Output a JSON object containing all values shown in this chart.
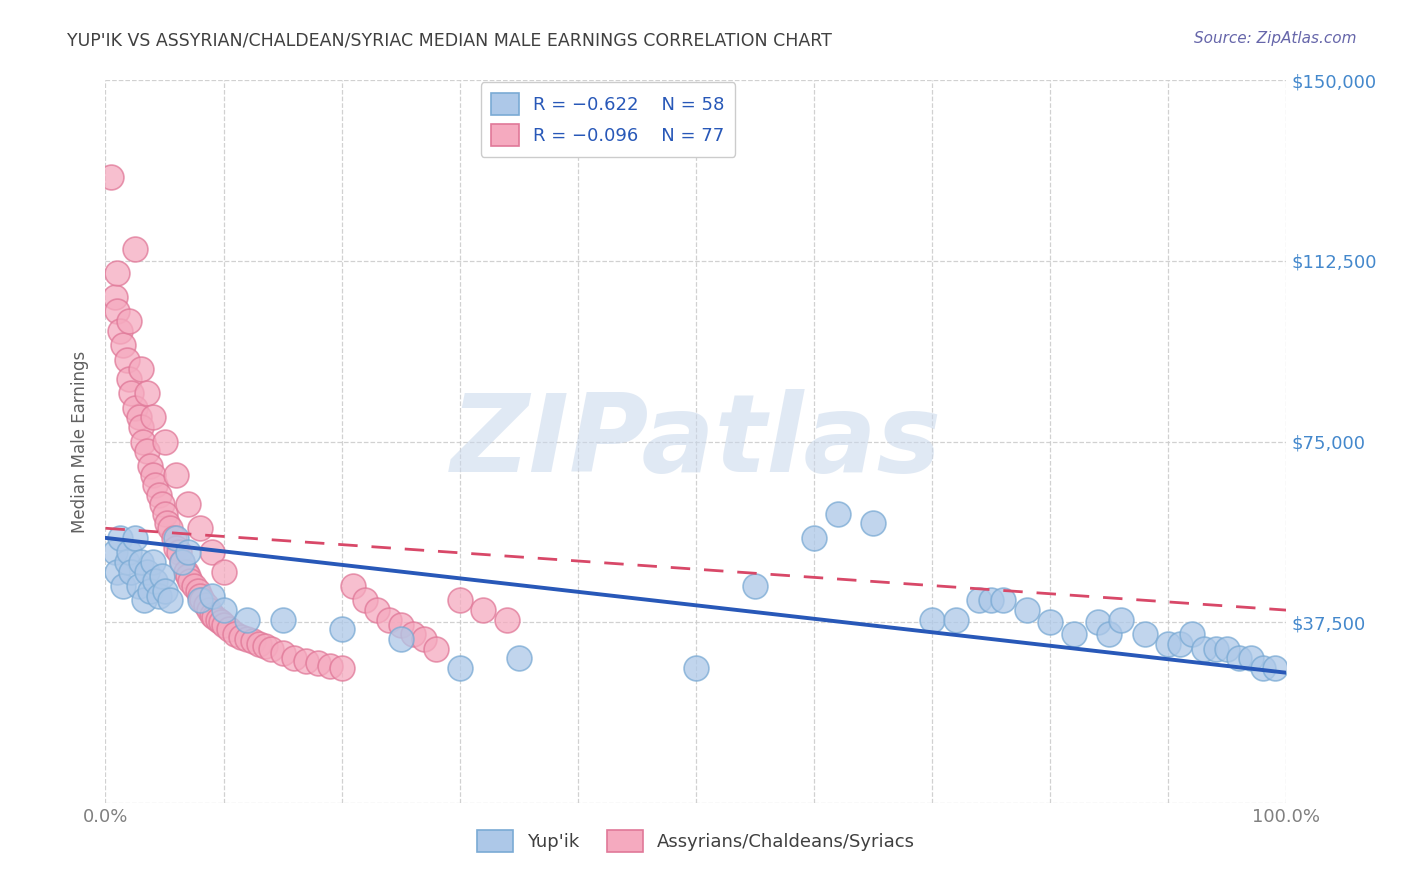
{
  "title": "YUP'IK VS ASSYRIAN/CHALDEAN/SYRIAC MEDIAN MALE EARNINGS CORRELATION CHART",
  "source": "Source: ZipAtlas.com",
  "ylabel": "Median Male Earnings",
  "xlim": [
    0,
    1.0
  ],
  "ylim": [
    0,
    150000
  ],
  "yticks": [
    0,
    37500,
    75000,
    112500,
    150000
  ],
  "ytick_labels_right": [
    "",
    "$37,500",
    "$75,000",
    "$112,500",
    "$150,000"
  ],
  "xtick_positions": [
    0.0,
    0.1,
    0.2,
    0.3,
    0.4,
    0.5,
    0.6,
    0.7,
    0.8,
    0.9,
    1.0
  ],
  "xtick_labels": [
    "0.0%",
    "",
    "",
    "",
    "",
    "",
    "",
    "",
    "",
    "",
    "100.0%"
  ],
  "background_color": "#ffffff",
  "grid_color": "#cccccc",
  "watermark": "ZIPatlas",
  "series1_color": "#adc8e8",
  "series1_edge": "#7aaad4",
  "series2_color": "#f5aabf",
  "series2_edge": "#e07898",
  "line1_color": "#2858b8",
  "line2_color": "#d84868",
  "title_color": "#404040",
  "source_color": "#6666aa",
  "axis_label_color": "#606060",
  "right_tick_color": "#4488cc",
  "legend_text_color": "#2858b8",
  "bottom_legend_color": "#404040",
  "yupik_x": [
    0.008,
    0.01,
    0.012,
    0.015,
    0.018,
    0.02,
    0.022,
    0.025,
    0.028,
    0.03,
    0.033,
    0.035,
    0.038,
    0.04,
    0.042,
    0.045,
    0.048,
    0.05,
    0.055,
    0.06,
    0.065,
    0.07,
    0.08,
    0.09,
    0.1,
    0.12,
    0.15,
    0.2,
    0.25,
    0.3,
    0.35,
    0.5,
    0.55,
    0.6,
    0.62,
    0.65,
    0.7,
    0.72,
    0.74,
    0.75,
    0.76,
    0.78,
    0.8,
    0.82,
    0.84,
    0.85,
    0.86,
    0.88,
    0.9,
    0.91,
    0.92,
    0.93,
    0.94,
    0.95,
    0.96,
    0.97,
    0.98,
    0.99
  ],
  "yupik_y": [
    52000,
    48000,
    55000,
    45000,
    50000,
    52000,
    48000,
    55000,
    45000,
    50000,
    42000,
    48000,
    44000,
    50000,
    46000,
    43000,
    47000,
    44000,
    42000,
    55000,
    50000,
    52000,
    42000,
    43000,
    40000,
    38000,
    38000,
    36000,
    34000,
    28000,
    30000,
    28000,
    45000,
    55000,
    60000,
    58000,
    38000,
    38000,
    42000,
    42000,
    42000,
    40000,
    37500,
    35000,
    37500,
    35000,
    38000,
    35000,
    33000,
    33000,
    35000,
    32000,
    32000,
    32000,
    30000,
    30000,
    28000,
    28000
  ],
  "assyrian_x": [
    0.005,
    0.008,
    0.01,
    0.012,
    0.015,
    0.018,
    0.02,
    0.022,
    0.025,
    0.028,
    0.03,
    0.032,
    0.035,
    0.038,
    0.04,
    0.042,
    0.045,
    0.048,
    0.05,
    0.052,
    0.055,
    0.058,
    0.06,
    0.062,
    0.065,
    0.068,
    0.07,
    0.072,
    0.075,
    0.078,
    0.08,
    0.082,
    0.085,
    0.088,
    0.09,
    0.092,
    0.095,
    0.098,
    0.1,
    0.105,
    0.11,
    0.115,
    0.12,
    0.125,
    0.13,
    0.135,
    0.14,
    0.15,
    0.16,
    0.17,
    0.18,
    0.19,
    0.2,
    0.21,
    0.22,
    0.23,
    0.24,
    0.25,
    0.26,
    0.27,
    0.28,
    0.3,
    0.32,
    0.34,
    0.01,
    0.02,
    0.03,
    0.035,
    0.04,
    0.05,
    0.06,
    0.07,
    0.08,
    0.09,
    0.1,
    0.025
  ],
  "assyrian_y": [
    130000,
    105000,
    102000,
    98000,
    95000,
    92000,
    88000,
    85000,
    82000,
    80000,
    78000,
    75000,
    73000,
    70000,
    68000,
    66000,
    64000,
    62000,
    60000,
    58000,
    57000,
    55000,
    53000,
    52000,
    50000,
    48000,
    47000,
    46000,
    45000,
    44000,
    43000,
    42000,
    41000,
    40000,
    39000,
    38500,
    38000,
    37500,
    37000,
    36000,
    35000,
    34500,
    34000,
    33500,
    33000,
    32500,
    32000,
    31000,
    30000,
    29500,
    29000,
    28500,
    28000,
    45000,
    42000,
    40000,
    38000,
    37000,
    35000,
    34000,
    32000,
    42000,
    40000,
    38000,
    110000,
    100000,
    90000,
    85000,
    80000,
    75000,
    68000,
    62000,
    57000,
    52000,
    48000,
    115000
  ]
}
